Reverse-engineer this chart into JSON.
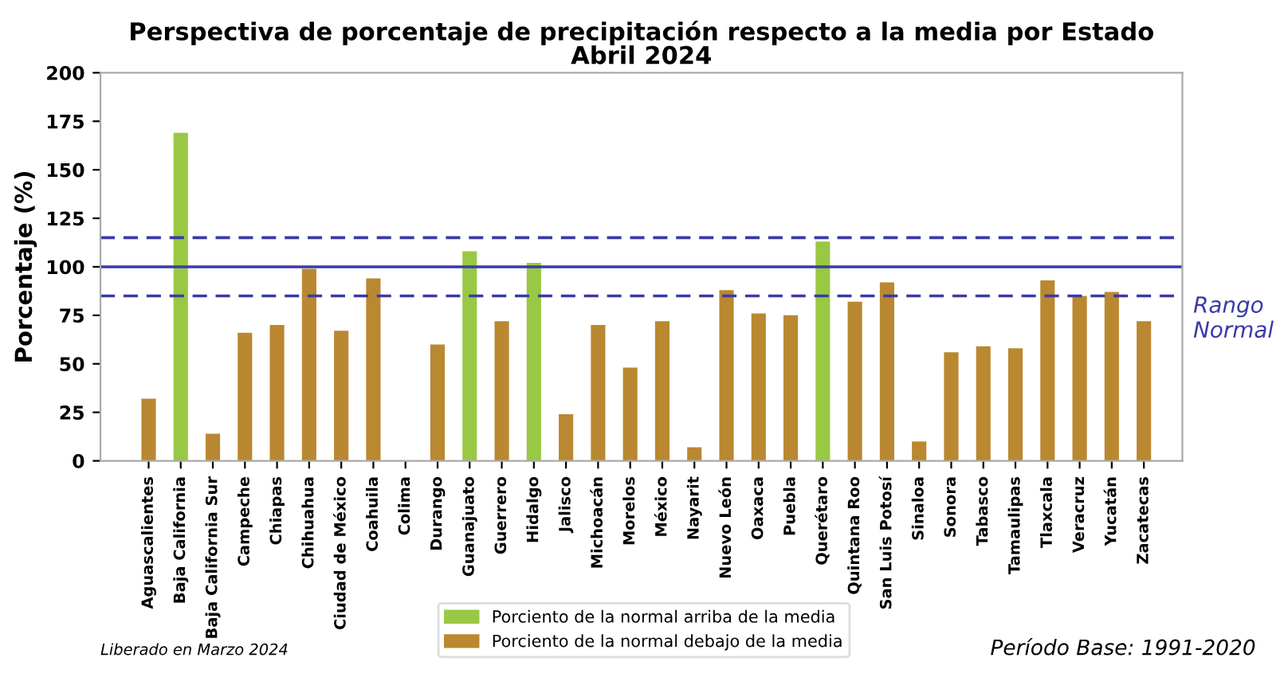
{
  "chart_data": {
    "type": "bar",
    "title": "Perspectiva de porcentaje de precipitación respecto a la media por Estado\nAbril 2024",
    "ylabel": "Porcentaje (%)",
    "categories": [
      "Aguascalientes",
      "Baja California",
      "Baja California Sur",
      "Campeche",
      "Chiapas",
      "Chihuahua",
      "Ciudad de México",
      "Coahuila",
      "Colima",
      "Durango",
      "Guanajuato",
      "Guerrero",
      "Hidalgo",
      "Jalisco",
      "Michoacán",
      "Morelos",
      "México",
      "Nayarit",
      "Nuevo León",
      "Oaxaca",
      "Puebla",
      "Querétaro",
      "Quintana Roo",
      "San Luis Potosí",
      "Sinaloa",
      "Sonora",
      "Tabasco",
      "Tamaulipas",
      "Tlaxcala",
      "Veracruz",
      "Yucatán",
      "Zacatecas"
    ],
    "series": [
      {
        "name": "Porciento de la normal arriba de la media",
        "color": "#99c844",
        "values": [
          null,
          169,
          null,
          null,
          null,
          null,
          null,
          null,
          null,
          null,
          108,
          null,
          102,
          null,
          null,
          null,
          null,
          null,
          null,
          null,
          null,
          113,
          null,
          null,
          null,
          null,
          null,
          null,
          null,
          null,
          null,
          null
        ]
      },
      {
        "name": "Porciento de la normal debajo de la media",
        "color": "#b98830",
        "values": [
          32,
          null,
          14,
          66,
          70,
          99,
          67,
          94,
          0,
          60,
          null,
          72,
          null,
          24,
          70,
          48,
          72,
          7,
          88,
          76,
          75,
          null,
          82,
          92,
          10,
          56,
          59,
          58,
          93,
          85,
          87,
          72
        ]
      }
    ],
    "ylim": [
      0,
      200
    ],
    "yticks": [
      0,
      25,
      50,
      75,
      100,
      125,
      150,
      175,
      200
    ],
    "ref_lines": [
      {
        "axis": "y",
        "value": 115,
        "color": "#3a3aa8",
        "line_style": "dashed"
      },
      {
        "axis": "y",
        "value": 100,
        "color": "#3a3aa8",
        "line_style": "solid"
      },
      {
        "axis": "y",
        "value": 85,
        "color": "#3a3aa8",
        "line_style": "dashed",
        "label": "Rango\nNormal"
      }
    ],
    "annotations": [
      "Liberado en Marzo 2024",
      "Período Base: 1991-2020"
    ],
    "grid": false,
    "legend": "bottom"
  }
}
